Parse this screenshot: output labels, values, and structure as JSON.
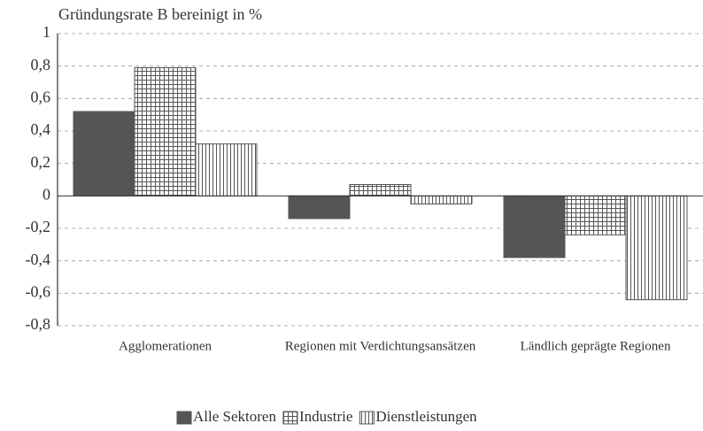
{
  "chart_data": {
    "type": "bar",
    "ylabel": "Gründungsrate B bereinigt in %",
    "categories": [
      "Agglomerationen",
      "Regionen mit Verdichtungsansätzen",
      "Ländlich geprägte Regionen"
    ],
    "series": [
      {
        "name": "Alle Sektoren",
        "color": "#555555",
        "pattern": "solid",
        "values": [
          0.52,
          -0.14,
          -0.38
        ]
      },
      {
        "name": "Industrie",
        "color": "#555555",
        "pattern": "grid",
        "values": [
          0.79,
          0.07,
          -0.24
        ]
      },
      {
        "name": "Dienstleistungen",
        "color": "#555555",
        "pattern": "vertical",
        "values": [
          0.32,
          -0.05,
          -0.64
        ]
      }
    ],
    "ylim": [
      -0.8,
      1
    ],
    "yticks": [
      {
        "value": -0.8,
        "label": "-0,8"
      },
      {
        "value": -0.6,
        "label": "-0,6"
      },
      {
        "value": -0.4,
        "label": "-0,4"
      },
      {
        "value": -0.2,
        "label": "-0,2"
      },
      0,
      {
        "value": 0.2,
        "label": "0,2"
      },
      {
        "value": 0.4,
        "label": "0,4"
      },
      {
        "value": 0.6,
        "label": "0,6"
      },
      {
        "value": 0.8,
        "label": "0,8"
      },
      1
    ],
    "grid": true,
    "legend": "bottom"
  }
}
